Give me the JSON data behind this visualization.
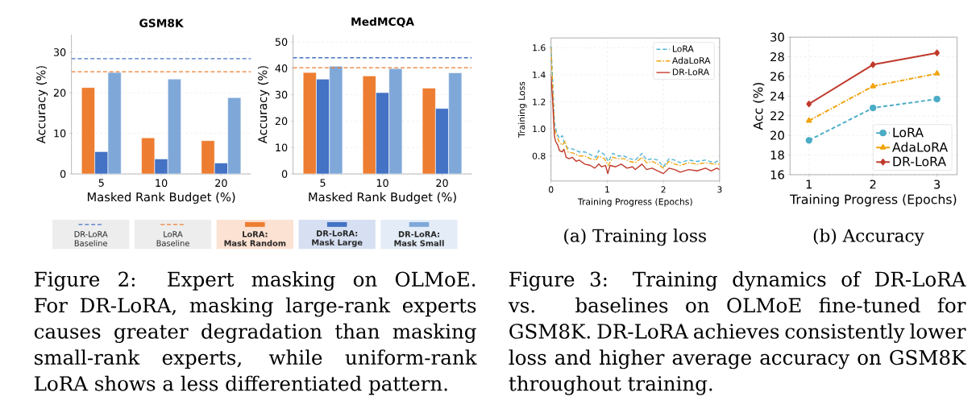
{
  "chart_data": [
    {
      "type": "bar",
      "title": "GSM8K",
      "xlabel": "Masked Rank Budget (%)",
      "ylabel": "Accuracy (%)",
      "categories": [
        "5",
        "10",
        "20"
      ],
      "series": [
        {
          "name": "LoRA: Mask Random",
          "color": "#ed7d31",
          "values": [
            21.3,
            8.9,
            8.2
          ]
        },
        {
          "name": "DR-LoRA: Mask Large",
          "color": "#4472c4",
          "values": [
            5.5,
            3.7,
            2.7
          ]
        },
        {
          "name": "DR-LoRA: Mask Small",
          "color": "#7fa8d9",
          "values": [
            25.0,
            23.4,
            18.8
          ]
        }
      ],
      "ylim": [
        0,
        34.3
      ],
      "yticks": [
        0,
        10,
        20,
        30
      ],
      "grid": "y",
      "legend": "bottom",
      "ref_lines": [
        {
          "axis": "y",
          "value": 28.4,
          "label": "DR-LoRA Baseline",
          "color": "#4472c4",
          "line_style": "dashed"
        },
        {
          "axis": "y",
          "value": 25.2,
          "label": "LoRA Baseline",
          "color": "#ed7d31",
          "line_style": "dashed"
        }
      ],
      "annotations": [
        "Figure 2: Expert masking on OLMoE. For DR-LoRA, masking large-rank experts causes greater degradation than masking small-rank experts, while uniform-rank LoRA shows a less differentiated pattern."
      ]
    },
    {
      "type": "bar",
      "title": "MedMCQA",
      "xlabel": "Masked Rank Budget (%)",
      "ylabel": "Accuracy (%)",
      "categories": [
        "5",
        "10",
        "20"
      ],
      "series": [
        {
          "color": "#ed7d31",
          "values": [
            38.4,
            37.1,
            32.5
          ]
        },
        {
          "color": "#4472c4",
          "values": [
            35.9,
            30.8,
            24.8
          ]
        },
        {
          "color": "#7fa8d9",
          "values": [
            40.8,
            39.9,
            38.3
          ]
        }
      ],
      "ylim": [
        0,
        52.7
      ],
      "yticks": [
        0,
        10,
        20,
        30,
        40,
        50
      ],
      "grid": "y",
      "ref_lines": [
        {
          "axis": "y",
          "value": 44.0,
          "color": "#4472c4",
          "line_style": "dashed"
        },
        {
          "axis": "y",
          "value": 40.2,
          "color": "#ed7d31",
          "line_style": "dashed"
        }
      ]
    },
    {
      "type": "line",
      "xlabel": "Training Progress (Epochs)",
      "ylabel": "Training Loss",
      "series": [
        {
          "name": "LoRA",
          "color": "#4eb3d3",
          "line_style": "dashed",
          "x": [
            0,
            0.03,
            0.06,
            0.1,
            0.15,
            0.2,
            0.25,
            0.3,
            0.4,
            0.5,
            0.6,
            0.7,
            0.8,
            0.85,
            0.95,
            1.02,
            1.1,
            1.2,
            1.3,
            1.4,
            1.5,
            1.62,
            1.7,
            1.8,
            1.9,
            2.0,
            2.1,
            2.2,
            2.3,
            2.45,
            2.6,
            2.75,
            2.9,
            3.0
          ],
          "values": [
            1.61,
            1.35,
            1.05,
            0.97,
            0.93,
            0.95,
            0.88,
            0.86,
            0.85,
            0.83,
            0.83,
            0.81,
            0.79,
            0.84,
            0.81,
            0.76,
            0.82,
            0.8,
            0.8,
            0.78,
            0.77,
            0.82,
            0.77,
            0.78,
            0.77,
            0.72,
            0.78,
            0.77,
            0.75,
            0.77,
            0.76,
            0.77,
            0.75,
            0.77
          ]
        },
        {
          "name": "AdaLoRA",
          "color": "#f0a30a",
          "line_style": "dashdot",
          "x": [
            0,
            0.03,
            0.06,
            0.1,
            0.15,
            0.2,
            0.25,
            0.3,
            0.4,
            0.5,
            0.6,
            0.7,
            0.8,
            0.85,
            0.95,
            1.02,
            1.1,
            1.2,
            1.3,
            1.4,
            1.5,
            1.62,
            1.7,
            1.8,
            1.9,
            2.0,
            2.1,
            2.2,
            2.3,
            2.45,
            2.6,
            2.75,
            2.9,
            3.0
          ],
          "values": [
            1.6,
            1.3,
            1.0,
            0.95,
            0.9,
            0.88,
            0.91,
            0.83,
            0.82,
            0.8,
            0.8,
            0.78,
            0.77,
            0.8,
            0.78,
            0.73,
            0.79,
            0.78,
            0.78,
            0.76,
            0.75,
            0.79,
            0.75,
            0.76,
            0.74,
            0.71,
            0.76,
            0.74,
            0.73,
            0.75,
            0.74,
            0.75,
            0.74,
            0.74
          ]
        },
        {
          "name": "DR-LoRA",
          "color": "#c0392b",
          "line_style": "solid",
          "x": [
            0,
            0.03,
            0.06,
            0.08,
            0.12,
            0.15,
            0.2,
            0.23,
            0.27,
            0.32,
            0.38,
            0.45,
            0.5,
            0.6,
            0.7,
            0.78,
            0.85,
            0.9,
            0.97,
            1.01,
            1.05,
            1.15,
            1.25,
            1.35,
            1.45,
            1.5,
            1.62,
            1.7,
            1.8,
            1.9,
            2.0,
            2.1,
            2.2,
            2.3,
            2.45,
            2.6,
            2.75,
            2.85,
            2.95,
            3.0
          ],
          "values": [
            1.39,
            1.2,
            0.95,
            0.91,
            0.88,
            0.84,
            0.83,
            0.85,
            0.79,
            0.78,
            0.79,
            0.76,
            0.77,
            0.74,
            0.73,
            0.71,
            0.74,
            0.72,
            0.73,
            0.67,
            0.73,
            0.72,
            0.74,
            0.71,
            0.72,
            0.7,
            0.74,
            0.7,
            0.71,
            0.69,
            0.67,
            0.71,
            0.7,
            0.68,
            0.7,
            0.69,
            0.71,
            0.69,
            0.71,
            0.7
          ]
        }
      ],
      "xlim": [
        0,
        3
      ],
      "xticks": [
        0,
        1,
        2,
        3
      ],
      "ylim": [
        0.615,
        1.672
      ],
      "yticks": [
        {
          "value": 0.8,
          "label": "0.8"
        },
        {
          "value": 1.0,
          "label": "1.0"
        },
        {
          "value": 1.2,
          "label": "1.2"
        },
        {
          "value": 1.4,
          "label": "1.4"
        },
        {
          "value": 1.6,
          "label": "1.6"
        }
      ],
      "grid": true,
      "legend": "top right",
      "annotations": [
        "(a) Training loss",
        "Figure 3: Training dynamics of DR-LoRA vs. baselines on OLMoE fine-tuned for GSM8K. DR-LoRA achieves consistently lower loss and higher average accuracy on GSM8K throughout training."
      ]
    },
    {
      "type": "line",
      "xlabel": "Training Progress (Epochs)",
      "ylabel": "Acc (%)",
      "x": [
        1,
        2,
        3
      ],
      "series": [
        {
          "name": "LoRA",
          "color": "#4bacc6",
          "line_style": "dashed",
          "marker": "circle",
          "values": [
            19.5,
            22.8,
            23.7
          ]
        },
        {
          "name": "AdaLoRA",
          "color": "#f0a30a",
          "line_style": "dashdot",
          "marker": "triangle",
          "values": [
            21.5,
            25.0,
            26.3
          ]
        },
        {
          "name": "DR-LoRA",
          "color": "#c0392b",
          "line_style": "solid",
          "marker": "diamond",
          "values": [
            23.2,
            27.2,
            28.4
          ]
        }
      ],
      "xlim": [
        0.704,
        3.313
      ],
      "xticks": [
        1,
        2,
        3
      ],
      "ylim": [
        16,
        30
      ],
      "yticks": [
        16,
        18,
        20,
        22,
        24,
        26,
        28,
        30
      ],
      "grid": true,
      "legend": "bottom right",
      "annotations": [
        "(b) Accuracy"
      ]
    }
  ]
}
